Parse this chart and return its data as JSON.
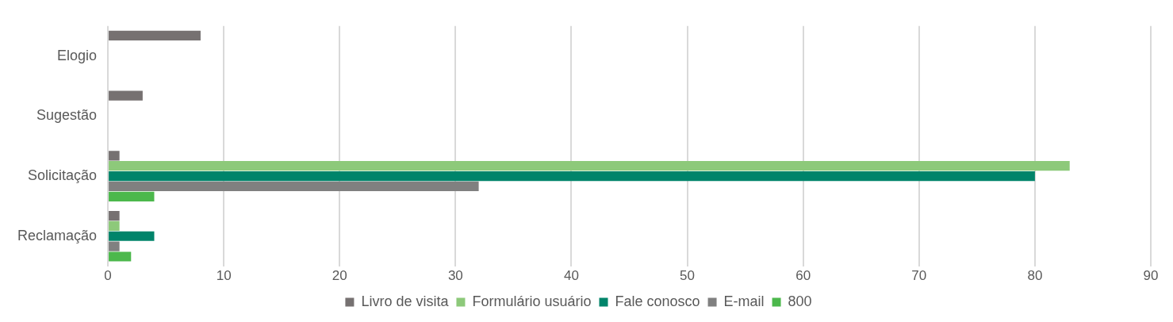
{
  "chart_data": {
    "type": "bar",
    "orientation": "horizontal",
    "categories": [
      "Elogio",
      "Sugestão",
      "Solicitação",
      "Reclamação"
    ],
    "series": [
      {
        "name": "Livro de visita",
        "color": "#767171",
        "values": [
          8,
          3,
          1,
          1
        ]
      },
      {
        "name": "Formulário usuário",
        "color": "#8dc97a",
        "values": [
          null,
          null,
          83,
          1
        ]
      },
      {
        "name": "Fale conosco",
        "color": "#00846a",
        "values": [
          null,
          null,
          80,
          4
        ]
      },
      {
        "name": "E-mail",
        "color": "#808080",
        "values": [
          null,
          null,
          32,
          1
        ]
      },
      {
        "name": "800",
        "color": "#4cb84c",
        "values": [
          null,
          null,
          4,
          2
        ]
      }
    ],
    "xlim": [
      0,
      90
    ],
    "xticks": [
      0,
      10,
      20,
      30,
      40,
      50,
      60,
      70,
      80,
      90
    ],
    "grid": "x",
    "legend": "bottom"
  }
}
